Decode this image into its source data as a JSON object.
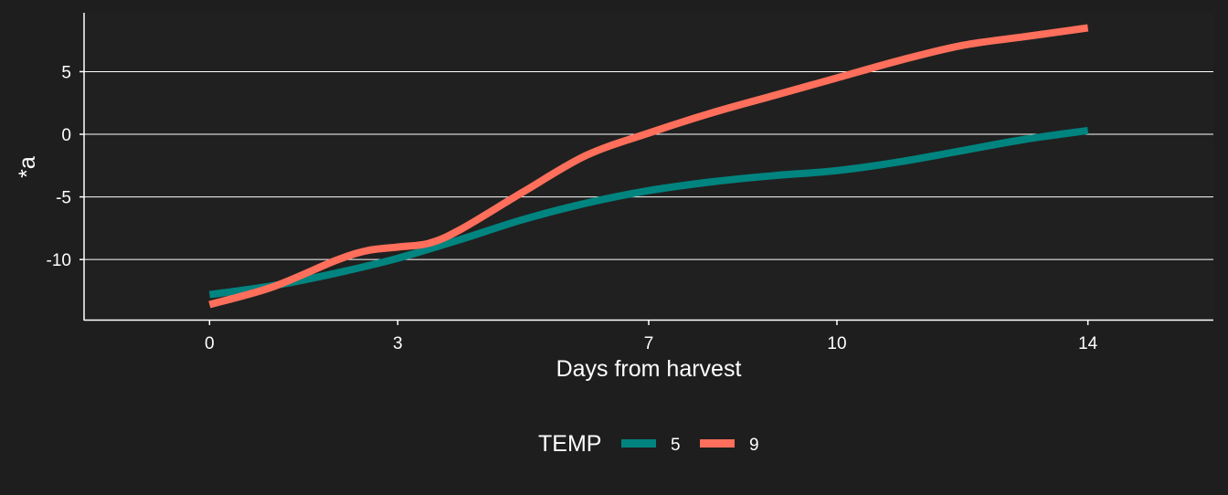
{
  "chart_data": {
    "type": "line",
    "title": "",
    "xlabel": "Days from harvest",
    "ylabel": "*a",
    "x_ticks": [
      0,
      3,
      7,
      10,
      14
    ],
    "y_ticks": [
      -10,
      -5,
      0,
      5
    ],
    "xlim": [
      -2,
      16
    ],
    "ylim": [
      -14.8,
      9.7
    ],
    "grid": "horizontal",
    "legend": {
      "title": "TEMP",
      "position": "bottom"
    },
    "series": [
      {
        "name": "5",
        "color": "#00847f",
        "x": [
          0,
          1,
          2,
          3,
          4,
          5,
          6,
          7,
          8,
          9,
          10,
          11,
          12,
          13,
          14
        ],
        "y": [
          -12.8,
          -12.1,
          -11.1,
          -9.9,
          -8.4,
          -6.8,
          -5.5,
          -4.5,
          -3.8,
          -3.3,
          -2.9,
          -2.2,
          -1.3,
          -0.4,
          0.3
        ]
      },
      {
        "name": "9",
        "color": "#ff6f5b",
        "x": [
          0,
          1,
          2,
          2.5,
          3,
          3.5,
          4,
          5,
          6,
          7,
          8,
          9,
          10,
          11,
          12,
          13,
          14
        ],
        "y": [
          -13.6,
          -12.2,
          -10.1,
          -9.3,
          -9.0,
          -8.7,
          -7.6,
          -4.6,
          -1.7,
          0.1,
          1.7,
          3.1,
          4.5,
          5.9,
          7.1,
          7.8,
          8.5
        ]
      }
    ]
  }
}
